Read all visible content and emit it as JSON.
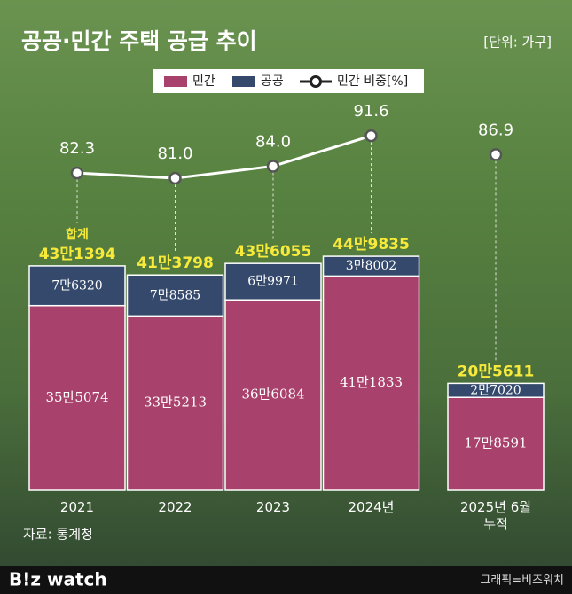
{
  "chart_data": {
    "type": "stacked-bar-line",
    "title": "공공·민간 주택 공급 추이",
    "unit_note": "[단위: 가구]",
    "source": "자료: 통계청",
    "credit": "그래픽=비즈워치",
    "brand": "B!z watch",
    "categories": [
      "2021",
      "2022",
      "2023",
      "2024년",
      "2025년 6월 누적"
    ],
    "series": [
      {
        "name": "민간",
        "color": "#a8416b",
        "values": [
          355074,
          335213,
          366084,
          411833,
          178591
        ],
        "value_labels": [
          "35만5074",
          "33만5213",
          "36만6084",
          "41만1833",
          "17만8591"
        ]
      },
      {
        "name": "공공",
        "color": "#34496b",
        "values": [
          76320,
          78585,
          69971,
          38002,
          27020
        ],
        "value_labels": [
          "7만6320",
          "7만8585",
          "6만9971",
          "3만8002",
          "2만7020"
        ]
      },
      {
        "name": "민간 비중[%]",
        "color": "#ffffff",
        "axis": "y2",
        "values": [
          82.3,
          81.0,
          84.0,
          91.6,
          86.9
        ],
        "value_labels": [
          "82.3",
          "81.0",
          "84.0",
          "91.6",
          "86.9"
        ],
        "line_break_before": 4
      }
    ],
    "totals": {
      "title": "합계",
      "color": "#f7ea3a",
      "values": [
        431394,
        413798,
        436055,
        449835,
        205611
      ],
      "value_labels": [
        "43만1394",
        "41만3798",
        "43만6055",
        "44만9835",
        "20만5611"
      ]
    },
    "ylim": [
      0,
      900000
    ],
    "y2lim": [
      3,
      120
    ]
  }
}
